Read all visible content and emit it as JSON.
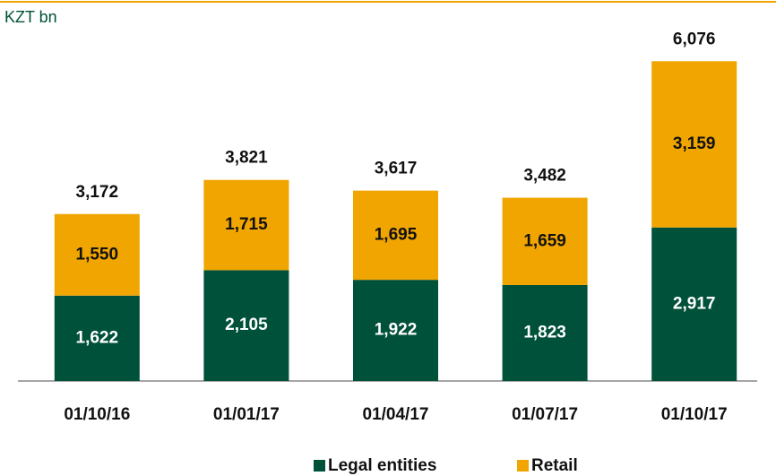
{
  "chart_data": {
    "type": "stacked_bar",
    "unit_label": "KZT bn",
    "categories": [
      "01/10/16",
      "01/01/17",
      "01/04/17",
      "01/07/17",
      "01/10/17"
    ],
    "series": [
      {
        "name": "Legal entities",
        "color": "#00513a",
        "values": [
          1622,
          2105,
          1922,
          1823,
          2917
        ],
        "value_labels": [
          "1,622",
          "2,105",
          "1,922",
          "1,823",
          "2,917"
        ]
      },
      {
        "name": "Retail",
        "color": "#f0a500",
        "values": [
          1550,
          1715,
          1695,
          1659,
          3159
        ],
        "value_labels": [
          "1,550",
          "1,715",
          "1,695",
          "1,659",
          "3,159"
        ]
      }
    ],
    "totals": [
      3172,
      3821,
      3617,
      3482,
      6076
    ],
    "total_labels": [
      "3,172",
      "3,821",
      "3,617",
      "3,482",
      "6,076"
    ],
    "ylim": [
      0,
      7000
    ]
  }
}
